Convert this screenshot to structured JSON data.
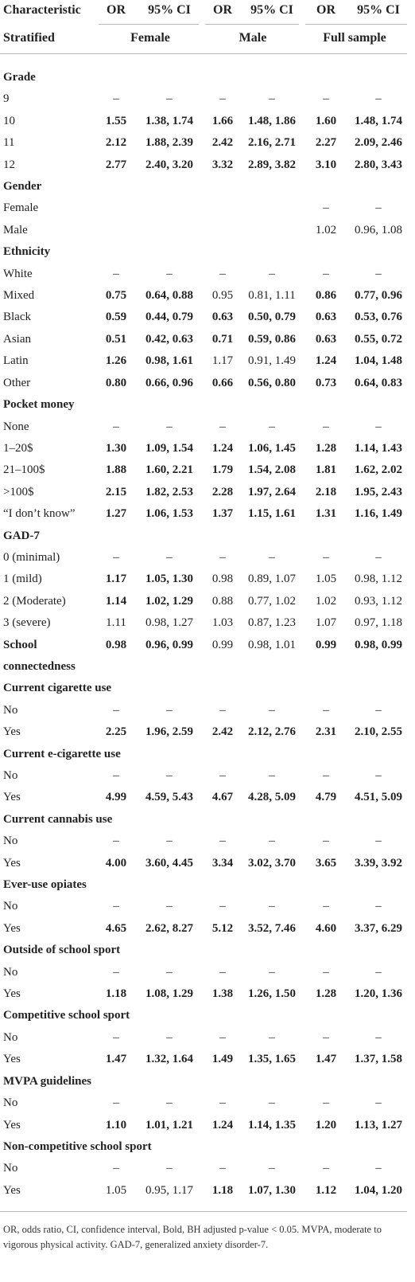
{
  "header": {
    "row1": [
      "Characteristic",
      "OR",
      "95% CI",
      "OR",
      "95% CI",
      "OR",
      "95% CI"
    ],
    "row2": [
      "Stratified",
      "Female",
      "Male",
      "Full sample"
    ]
  },
  "table": {
    "rows": [
      [
        {
          "text": "Grade",
          "bold": true
        }
      ],
      [
        "9",
        "–",
        "–",
        "–",
        "–",
        "–",
        "–"
      ],
      [
        "10",
        {
          "text": "1.55",
          "bold": true
        },
        {
          "text": "1.38, 1.74",
          "bold": true
        },
        {
          "text": "1.66",
          "bold": true
        },
        {
          "text": "1.48, 1.86",
          "bold": true
        },
        {
          "text": "1.60",
          "bold": true
        },
        {
          "text": "1.48, 1.74",
          "bold": true
        }
      ],
      [
        "11",
        {
          "text": "2.12",
          "bold": true
        },
        {
          "text": "1.88, 2.39",
          "bold": true
        },
        {
          "text": "2.42",
          "bold": true
        },
        {
          "text": "2.16, 2.71",
          "bold": true
        },
        {
          "text": "2.27",
          "bold": true
        },
        {
          "text": "2.09, 2.46",
          "bold": true
        }
      ],
      [
        "12",
        {
          "text": "2.77",
          "bold": true
        },
        {
          "text": "2.40, 3.20",
          "bold": true
        },
        {
          "text": "3.32",
          "bold": true
        },
        {
          "text": "2.89, 3.82",
          "bold": true
        },
        {
          "text": "3.10",
          "bold": true
        },
        {
          "text": "2.80, 3.43",
          "bold": true
        }
      ],
      [
        {
          "text": "Gender",
          "bold": true
        }
      ],
      [
        "Female",
        null,
        null,
        null,
        null,
        "–",
        "–"
      ],
      [
        "Male",
        null,
        null,
        null,
        null,
        "1.02",
        "0.96, 1.08"
      ],
      [
        {
          "text": "Ethnicity",
          "bold": true
        }
      ],
      [
        "White",
        "–",
        "–",
        "–",
        "–",
        "–",
        "–"
      ],
      [
        "Mixed",
        {
          "text": "0.75",
          "bold": true
        },
        {
          "text": "0.64, 0.88",
          "bold": true
        },
        "0.95",
        "0.81, 1.11",
        {
          "text": "0.86",
          "bold": true
        },
        {
          "text": "0.77, 0.96",
          "bold": true
        }
      ],
      [
        "Black",
        {
          "text": "0.59",
          "bold": true
        },
        {
          "text": "0.44, 0.79",
          "bold": true
        },
        {
          "text": "0.63",
          "bold": true
        },
        {
          "text": "0.50, 0.79",
          "bold": true
        },
        {
          "text": "0.63",
          "bold": true
        },
        {
          "text": "0.53, 0.76",
          "bold": true
        }
      ],
      [
        "Asian",
        {
          "text": "0.51",
          "bold": true
        },
        {
          "text": "0.42, 0.63",
          "bold": true
        },
        {
          "text": "0.71",
          "bold": true
        },
        {
          "text": "0.59, 0.86",
          "bold": true
        },
        {
          "text": "0.63",
          "bold": true
        },
        {
          "text": "0.55, 0.72",
          "bold": true
        }
      ],
      [
        "Latin",
        {
          "text": "1.26",
          "bold": true
        },
        {
          "text": "0.98, 1.61",
          "bold": true
        },
        "1.17",
        "0.91, 1.49",
        {
          "text": "1.24",
          "bold": true
        },
        {
          "text": "1.04, 1.48",
          "bold": true
        }
      ],
      [
        "Other",
        {
          "text": "0.80",
          "bold": true
        },
        {
          "text": "0.66, 0.96",
          "bold": true
        },
        {
          "text": "0.66",
          "bold": true
        },
        {
          "text": "0.56, 0.80",
          "bold": true
        },
        {
          "text": "0.73",
          "bold": true
        },
        {
          "text": "0.64, 0.83",
          "bold": true
        }
      ],
      [
        {
          "text": "Pocket money",
          "bold": true
        }
      ],
      [
        "None",
        "–",
        "–",
        "–",
        "–",
        "–",
        "–"
      ],
      [
        "1–20$",
        {
          "text": "1.30",
          "bold": true
        },
        {
          "text": "1.09, 1.54",
          "bold": true
        },
        {
          "text": "1.24",
          "bold": true
        },
        {
          "text": "1.06, 1.45",
          "bold": true
        },
        {
          "text": "1.28",
          "bold": true
        },
        {
          "text": "1.14, 1.43",
          "bold": true
        }
      ],
      [
        "21–100$",
        {
          "text": "1.88",
          "bold": true
        },
        {
          "text": "1.60, 2.21",
          "bold": true
        },
        {
          "text": "1.79",
          "bold": true
        },
        {
          "text": "1.54, 2.08",
          "bold": true
        },
        {
          "text": "1.81",
          "bold": true
        },
        {
          "text": "1.62, 2.02",
          "bold": true
        }
      ],
      [
        ">100$",
        {
          "text": "2.15",
          "bold": true
        },
        {
          "text": "1.82, 2.53",
          "bold": true
        },
        {
          "text": "2.28",
          "bold": true
        },
        {
          "text": "1.97, 2.64",
          "bold": true
        },
        {
          "text": "2.18",
          "bold": true
        },
        {
          "text": "1.95, 2.43",
          "bold": true
        }
      ],
      [
        "“I don’t know”",
        {
          "text": "1.27",
          "bold": true
        },
        {
          "text": "1.06, 1.53",
          "bold": true
        },
        {
          "text": "1.37",
          "bold": true
        },
        {
          "text": "1.15, 1.61",
          "bold": true
        },
        {
          "text": "1.31",
          "bold": true
        },
        {
          "text": "1.16, 1.49",
          "bold": true
        }
      ],
      [
        {
          "text": "GAD-7",
          "bold": true
        }
      ],
      [
        "0 (minimal)",
        "–",
        "–",
        "–",
        "–",
        "–",
        "–"
      ],
      [
        "1 (mild)",
        {
          "text": "1.17",
          "bold": true
        },
        {
          "text": "1.05, 1.30",
          "bold": true
        },
        "0.98",
        "0.89, 1.07",
        "1.05",
        "0.98, 1.12"
      ],
      [
        "2 (Moderate)",
        {
          "text": "1.14",
          "bold": true
        },
        {
          "text": "1.02, 1.29",
          "bold": true
        },
        "0.88",
        "0.77, 1.02",
        "1.02",
        "0.93, 1.12"
      ],
      [
        "3 (severe)",
        "1.11",
        "0.98, 1.27",
        "1.03",
        "0.87, 1.23",
        "1.07",
        "0.97, 1.18"
      ],
      [
        {
          "text": "School connectedness",
          "bold": true
        },
        {
          "text": "0.98",
          "bold": true
        },
        {
          "text": "0.96, 0.99",
          "bold": true
        },
        "0.99",
        "0.98, 1.01",
        {
          "text": "0.99",
          "bold": true
        },
        {
          "text": "0.98, 0.99",
          "bold": true
        }
      ],
      [
        {
          "text": "Current cigarette use",
          "bold": true
        }
      ],
      [
        "No",
        "–",
        "–",
        "–",
        "–",
        "–",
        "–"
      ],
      [
        "Yes",
        {
          "text": "2.25",
          "bold": true
        },
        {
          "text": "1.96, 2.59",
          "bold": true
        },
        {
          "text": "2.42",
          "bold": true
        },
        {
          "text": "2.12, 2.76",
          "bold": true
        },
        {
          "text": "2.31",
          "bold": true
        },
        {
          "text": "2.10, 2.55",
          "bold": true
        }
      ],
      [
        {
          "text": "Current e-cigarette use",
          "bold": true
        }
      ],
      [
        "No",
        "–",
        "–",
        "–",
        "–",
        "–",
        "–"
      ],
      [
        "Yes",
        {
          "text": "4.99",
          "bold": true
        },
        {
          "text": "4.59, 5.43",
          "bold": true
        },
        {
          "text": "4.67",
          "bold": true
        },
        {
          "text": "4.28, 5.09",
          "bold": true
        },
        {
          "text": "4.79",
          "bold": true
        },
        {
          "text": "4.51, 5.09",
          "bold": true
        }
      ],
      [
        {
          "text": "Current cannabis use",
          "bold": true
        }
      ],
      [
        "No",
        "–",
        "–",
        "–",
        "–",
        "–",
        "–"
      ],
      [
        "Yes",
        {
          "text": "4.00",
          "bold": true
        },
        {
          "text": "3.60, 4.45",
          "bold": true
        },
        {
          "text": "3.34",
          "bold": true
        },
        {
          "text": "3.02, 3.70",
          "bold": true
        },
        {
          "text": "3.65",
          "bold": true
        },
        {
          "text": "3.39, 3.92",
          "bold": true
        }
      ],
      [
        {
          "text": "Ever-use opiates",
          "bold": true
        }
      ],
      [
        "No",
        "–",
        "–",
        "–",
        "–",
        "–",
        "–"
      ],
      [
        "Yes",
        {
          "text": "4.65",
          "bold": true
        },
        {
          "text": "2.62, 8.27",
          "bold": true
        },
        {
          "text": "5.12",
          "bold": true
        },
        {
          "text": "3.52, 7.46",
          "bold": true
        },
        {
          "text": "4.60",
          "bold": true
        },
        {
          "text": "3.37, 6.29",
          "bold": true
        }
      ],
      [
        {
          "text": "Outside of school sport",
          "bold": true
        }
      ],
      [
        "No",
        "–",
        "–",
        "–",
        "–",
        "–",
        "–"
      ],
      [
        "Yes",
        {
          "text": "1.18",
          "bold": true
        },
        {
          "text": "1.08, 1.29",
          "bold": true
        },
        {
          "text": "1.38",
          "bold": true
        },
        {
          "text": "1.26, 1.50",
          "bold": true
        },
        {
          "text": "1.28",
          "bold": true
        },
        {
          "text": "1.20, 1.36",
          "bold": true
        }
      ],
      [
        {
          "text": "Competitive school sport",
          "bold": true
        }
      ],
      [
        "No",
        "–",
        "–",
        "–",
        "–",
        "–",
        "–"
      ],
      [
        "Yes",
        {
          "text": "1.47",
          "bold": true
        },
        {
          "text": "1.32, 1.64",
          "bold": true
        },
        {
          "text": "1.49",
          "bold": true
        },
        {
          "text": "1.35, 1.65",
          "bold": true
        },
        {
          "text": "1.47",
          "bold": true
        },
        {
          "text": "1.37, 1.58",
          "bold": true
        }
      ],
      [
        {
          "text": "MVPA guidelines",
          "bold": true
        }
      ],
      [
        "No",
        "–",
        "–",
        "–",
        "–",
        "–",
        "–"
      ],
      [
        "Yes",
        {
          "text": "1.10",
          "bold": true
        },
        {
          "text": "1.01, 1.21",
          "bold": true
        },
        {
          "text": "1.24",
          "bold": true
        },
        {
          "text": "1.14, 1.35",
          "bold": true
        },
        {
          "text": "1.20",
          "bold": true
        },
        {
          "text": "1.13, 1.27",
          "bold": true
        }
      ],
      [
        {
          "text": "Non-competitive school sport",
          "bold": true
        }
      ],
      [
        "No",
        "–",
        "–",
        "–",
        "–",
        "–",
        "–"
      ],
      [
        "Yes",
        "1.05",
        "0.95, 1.17",
        {
          "text": "1.18",
          "bold": true
        },
        {
          "text": "1.07, 1.30",
          "bold": true
        },
        {
          "text": "1.12",
          "bold": true
        },
        {
          "text": "1.04, 1.20",
          "bold": true
        }
      ]
    ]
  },
  "footnote": "OR, odds ratio, CI, confidence interval, Bold, BH adjusted p-value < 0.05. MVPA, moderate to vigorous physical activity. GAD-7, generalized anxiety disorder-7."
}
